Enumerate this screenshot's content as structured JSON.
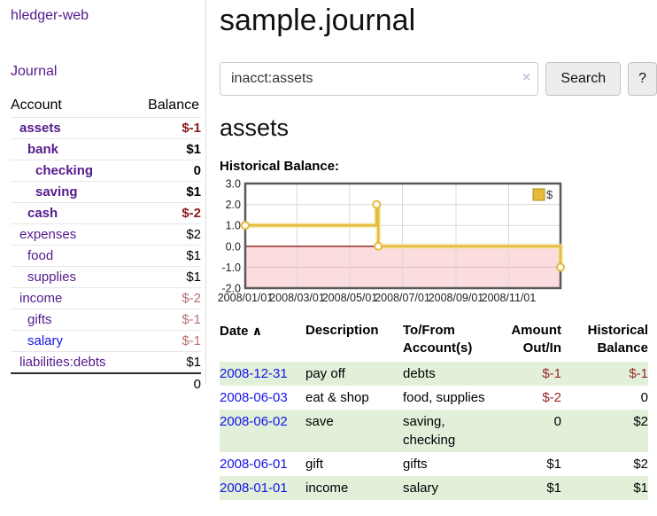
{
  "sidebar": {
    "brand": "hledger-web",
    "nav": {
      "journal": "Journal"
    },
    "accounts_table": {
      "headers": {
        "account": "Account",
        "balance": "Balance"
      },
      "rows": [
        {
          "name": "assets",
          "balance": "$-1",
          "level": 0,
          "bold": true,
          "negative": true,
          "link_state": "visited"
        },
        {
          "name": "bank",
          "balance": "$1",
          "level": 1,
          "bold": true,
          "negative": false,
          "link_state": "visited"
        },
        {
          "name": "checking",
          "balance": "0",
          "level": 2,
          "bold": true,
          "negative": false,
          "link_state": "visited"
        },
        {
          "name": "saving",
          "balance": "$1",
          "level": 2,
          "bold": true,
          "negative": false,
          "link_state": "visited"
        },
        {
          "name": "cash",
          "balance": "$-2",
          "level": 1,
          "bold": true,
          "negative": true,
          "link_state": "visited"
        },
        {
          "name": "expenses",
          "balance": "$2",
          "level": 0,
          "bold": false,
          "negative": false,
          "link_state": "visited"
        },
        {
          "name": "food",
          "balance": "$1",
          "level": 1,
          "bold": false,
          "negative": false,
          "link_state": "visited"
        },
        {
          "name": "supplies",
          "balance": "$1",
          "level": 1,
          "bold": false,
          "negative": false,
          "link_state": "visited"
        },
        {
          "name": "income",
          "balance": "$-2",
          "level": 0,
          "bold": false,
          "negative": true,
          "link_state": "visited"
        },
        {
          "name": "gifts",
          "balance": "$-1",
          "level": 1,
          "bold": false,
          "negative": true,
          "link_state": "visited"
        },
        {
          "name": "salary",
          "balance": "$-1",
          "level": 1,
          "bold": false,
          "negative": true,
          "link_state": "unvisited"
        },
        {
          "name": "liabilities:debts",
          "balance": "$1",
          "level": 0,
          "bold": false,
          "negative": false,
          "link_state": "visited"
        }
      ],
      "total": "0"
    }
  },
  "main": {
    "title": "sample.journal",
    "search": {
      "value": "inacct:assets",
      "clear_icon": "×",
      "button_label": "Search",
      "help_label": "?"
    },
    "account_heading": "assets",
    "chart_label": "Historical Balance:"
  },
  "chart_data": {
    "type": "line",
    "step": true,
    "title": "Historical Balance:",
    "series": [
      {
        "name": "$",
        "points": [
          {
            "date": "2008-01-01",
            "value": 1
          },
          {
            "date": "2008-06-01",
            "value": 2
          },
          {
            "date": "2008-06-03",
            "value": 0
          },
          {
            "date": "2008-12-31",
            "value": -1
          }
        ]
      }
    ],
    "x_range": [
      "2008-01-01",
      "2008-12-31"
    ],
    "ylim": [
      -2,
      3
    ],
    "yticks": [
      {
        "v": 3,
        "label": "3.0"
      },
      {
        "v": 2,
        "label": "2.0"
      },
      {
        "v": 1,
        "label": "1.0"
      },
      {
        "v": 0,
        "label": "0.0"
      },
      {
        "v": -1,
        "label": "-1.0"
      },
      {
        "v": -2,
        "label": "-2.0"
      }
    ],
    "xticks": [
      {
        "date": "2008-01-01",
        "label": "2008/01/01"
      },
      {
        "date": "2008-03-01",
        "label": "2008/03/01"
      },
      {
        "date": "2008-05-01",
        "label": "2008/05/01"
      },
      {
        "date": "2008-07-01",
        "label": "2008/07/01"
      },
      {
        "date": "2008-09-01",
        "label": "2008/09/01"
      },
      {
        "date": "2008-11-01",
        "label": "2008/11/01"
      }
    ],
    "legend_position": "top-right",
    "grid": true,
    "colors": {
      "line": "#e4bc39",
      "line_halo": "#f2e3a7",
      "marker_fill": "#ffffff",
      "negative_region": "#fbdde0",
      "zero_line": "#8c1717",
      "border": "#59595b",
      "gridline": "#d9d9d9"
    }
  },
  "transactions": {
    "headers": {
      "date": "Date",
      "sort_icon": "∧",
      "description": "Description",
      "tofrom": [
        "To/From",
        "Account(s)"
      ],
      "amount": [
        "Amount",
        "Out/In"
      ],
      "balance": [
        "Historical",
        "Balance"
      ]
    },
    "rows": [
      {
        "date": "2008-12-31",
        "description": "pay off",
        "accounts": "debts",
        "amount": "$-1",
        "balance": "$-1"
      },
      {
        "date": "2008-06-03",
        "description": "eat & shop",
        "accounts": "food, supplies",
        "amount": "$-2",
        "balance": "0"
      },
      {
        "date": "2008-06-02",
        "description": "save",
        "accounts": "saving, checking",
        "amount": "0",
        "balance": "$2"
      },
      {
        "date": "2008-06-01",
        "description": "gift",
        "accounts": "gifts",
        "amount": "$1",
        "balance": "$2"
      },
      {
        "date": "2008-01-01",
        "description": "income",
        "accounts": "salary",
        "amount": "$1",
        "balance": "$1"
      }
    ]
  },
  "colors": {
    "link_visited": "#551a8b",
    "link_unvisited": "#1414e8",
    "negative_bold": "#8b1a1a",
    "negative_light": "#b96f6f",
    "negative_table": "#9c2525",
    "row_stripe_green": "#e2efd9"
  }
}
